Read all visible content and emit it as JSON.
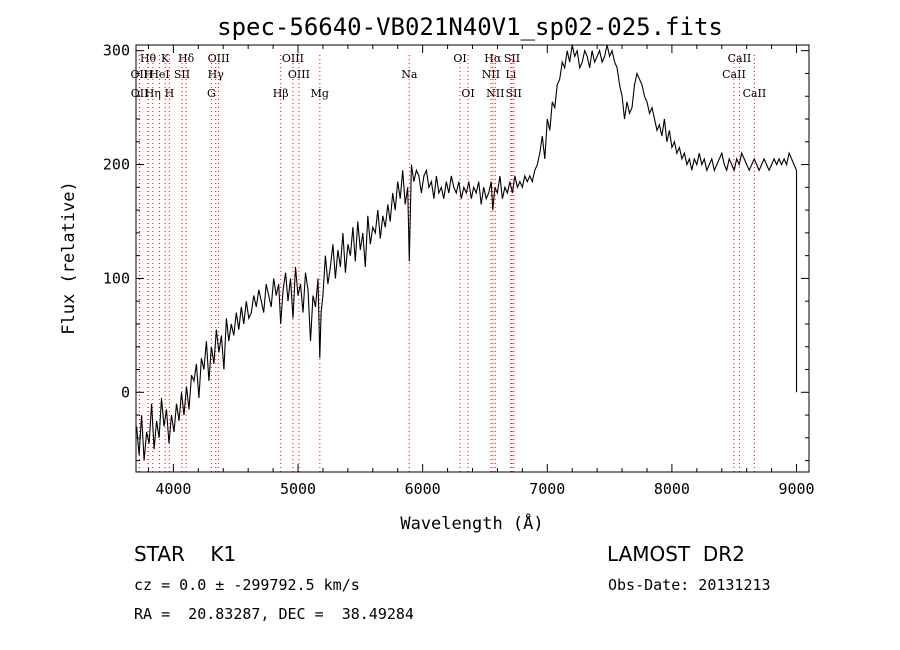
{
  "chart_data": {
    "type": "line",
    "title": "spec-56640-VB021N40V1_sp02-025.fits",
    "xlabel": "Wavelength (Å)",
    "ylabel": "Flux (relative)",
    "xlim": [
      3700,
      9100
    ],
    "ylim": [
      -70,
      305
    ],
    "x_ticks": [
      4000,
      5000,
      6000,
      7000,
      8000,
      9000
    ],
    "y_ticks": [
      0,
      100,
      200,
      300
    ],
    "grid": false,
    "line_color": "#000000",
    "marker_color": "#ff0000",
    "series": [
      {
        "x": [
          3705,
          3725,
          3745,
          3765,
          3785,
          3805,
          3825,
          3845,
          3865,
          3885,
          3905,
          3925,
          3945,
          3965,
          3985,
          4005,
          4025,
          4045,
          4065,
          4085,
          4105,
          4125,
          4145,
          4165,
          4185,
          4205,
          4225,
          4245,
          4265,
          4285,
          4305,
          4325,
          4345,
          4365,
          4385,
          4405,
          4425,
          4445,
          4465,
          4485,
          4505,
          4525,
          4545,
          4565,
          4585,
          4605,
          4625,
          4645,
          4665,
          4685,
          4705,
          4725,
          4745,
          4765,
          4785,
          4805,
          4825,
          4845,
          4861,
          4880,
          4900,
          4920,
          4940,
          4960,
          4980,
          5000,
          5020,
          5040,
          5060,
          5080,
          5100,
          5120,
          5140,
          5160,
          5175,
          5185,
          5200,
          5220,
          5240,
          5260,
          5280,
          5300,
          5320,
          5340,
          5360,
          5380,
          5400,
          5420,
          5440,
          5460,
          5480,
          5500,
          5520,
          5540,
          5560,
          5580,
          5600,
          5620,
          5640,
          5660,
          5680,
          5700,
          5720,
          5740,
          5760,
          5780,
          5800,
          5820,
          5840,
          5860,
          5880,
          5893,
          5910,
          5930,
          5950,
          5970,
          5990,
          6010,
          6030,
          6050,
          6070,
          6090,
          6110,
          6130,
          6150,
          6170,
          6190,
          6210,
          6230,
          6250,
          6270,
          6290,
          6310,
          6330,
          6350,
          6370,
          6390,
          6410,
          6430,
          6450,
          6470,
          6490,
          6510,
          6530,
          6550,
          6563,
          6580,
          6600,
          6620,
          6640,
          6660,
          6680,
          6700,
          6720,
          6740,
          6760,
          6780,
          6800,
          6820,
          6840,
          6860,
          6880,
          6900,
          6920,
          6940,
          6960,
          6980,
          7000,
          7020,
          7040,
          7060,
          7080,
          7100,
          7120,
          7140,
          7160,
          7180,
          7200,
          7220,
          7240,
          7260,
          7280,
          7300,
          7320,
          7340,
          7360,
          7380,
          7400,
          7420,
          7440,
          7460,
          7480,
          7500,
          7520,
          7540,
          7560,
          7580,
          7600,
          7620,
          7640,
          7660,
          7680,
          7700,
          7720,
          7740,
          7760,
          7780,
          7800,
          7820,
          7840,
          7860,
          7880,
          7900,
          7920,
          7940,
          7960,
          7980,
          8000,
          8020,
          8040,
          8060,
          8080,
          8100,
          8120,
          8140,
          8160,
          8180,
          8200,
          8220,
          8240,
          8260,
          8280,
          8300,
          8320,
          8340,
          8360,
          8380,
          8400,
          8420,
          8440,
          8460,
          8480,
          8500,
          8520,
          8540,
          8560,
          8580,
          8600,
          8620,
          8640,
          8660,
          8680,
          8700,
          8720,
          8740,
          8760,
          8780,
          8800,
          8820,
          8840,
          8860,
          8880,
          8900,
          8920,
          8940,
          8960,
          8980,
          9000
        ],
        "y": [
          -30,
          -55,
          -20,
          -60,
          -35,
          -45,
          -10,
          -50,
          -25,
          -40,
          -5,
          -30,
          -15,
          -45,
          -20,
          -35,
          -10,
          -25,
          0,
          -20,
          5,
          -15,
          15,
          10,
          25,
          -5,
          30,
          20,
          45,
          10,
          40,
          25,
          55,
          35,
          50,
          20,
          65,
          45,
          60,
          50,
          70,
          55,
          75,
          60,
          80,
          65,
          70,
          85,
          75,
          90,
          80,
          70,
          95,
          85,
          75,
          100,
          85,
          95,
          60,
          90,
          105,
          80,
          100,
          65,
          110,
          85,
          95,
          70,
          105,
          90,
          45,
          85,
          75,
          100,
          30,
          70,
          85,
          120,
          95,
          110,
          130,
          100,
          125,
          110,
          140,
          105,
          130,
          120,
          145,
          115,
          150,
          125,
          140,
          110,
          155,
          130,
          145,
          140,
          160,
          135,
          155,
          145,
          165,
          150,
          175,
          160,
          185,
          170,
          195,
          165,
          180,
          115,
          200,
          185,
          195,
          190,
          175,
          190,
          195,
          180,
          185,
          170,
          190,
          175,
          180,
          170,
          185,
          175,
          190,
          180,
          175,
          185,
          170,
          180,
          175,
          185,
          170,
          180,
          175,
          185,
          165,
          180,
          170,
          175,
          185,
          160,
          180,
          175,
          190,
          170,
          180,
          175,
          185,
          175,
          190,
          180,
          185,
          180,
          190,
          185,
          190,
          185,
          195,
          200,
          210,
          225,
          205,
          240,
          230,
          255,
          250,
          270,
          275,
          290,
          285,
          300,
          290,
          305,
          295,
          300,
          285,
          290,
          300,
          295,
          285,
          300,
          290,
          295,
          300,
          290,
          295,
          305,
          295,
          300,
          290,
          285,
          270,
          260,
          240,
          255,
          245,
          250,
          270,
          280,
          275,
          270,
          260,
          255,
          245,
          250,
          240,
          230,
          235,
          225,
          240,
          220,
          230,
          215,
          220,
          210,
          215,
          205,
          210,
          200,
          205,
          195,
          205,
          200,
          210,
          200,
          205,
          195,
          200,
          205,
          195,
          200,
          205,
          210,
          200,
          195,
          205,
          200,
          195,
          205,
          200,
          210,
          205,
          200,
          195,
          200,
          205,
          200,
          195,
          200,
          205,
          200,
          195,
          200,
          205,
          200,
          205,
          200,
          205,
          200,
          210,
          205,
          200,
          195
        ]
      }
    ],
    "line_markers": [
      {
        "name": "Hθ",
        "row": 1,
        "wl": 3797
      },
      {
        "name": "K",
        "row": 1,
        "wl": 3934
      },
      {
        "name": "Hδ",
        "row": 1,
        "wl": 4102
      },
      {
        "name": "OIII",
        "row": 1,
        "wl": 4363
      },
      {
        "name": "OIII",
        "row": 1,
        "wl": 4959
      },
      {
        "name": "OI",
        "row": 1,
        "wl": 6300
      },
      {
        "name": "Hα",
        "row": 1,
        "wl": 6563
      },
      {
        "name": "SII",
        "row": 1,
        "wl": 6717
      },
      {
        "name": "CaII",
        "row": 1,
        "wl": 8542
      },
      {
        "name": "OII",
        "row": 2,
        "wl": 3727
      },
      {
        "name": "H",
        "row": 2,
        "wl": 3798
      },
      {
        "name": "HeI",
        "row": 2,
        "wl": 3889
      },
      {
        "name": "SII",
        "row": 2,
        "wl": 4069
      },
      {
        "name": "Hγ",
        "row": 2,
        "wl": 4340
      },
      {
        "name": "OIII",
        "row": 2,
        "wl": 5007
      },
      {
        "name": "Na",
        "row": 2,
        "wl": 5893
      },
      {
        "name": "NII",
        "row": 2,
        "wl": 6548
      },
      {
        "name": "Li",
        "row": 2,
        "wl": 6708
      },
      {
        "name": "CaII",
        "row": 2,
        "wl": 8498
      },
      {
        "name": "OII",
        "row": 3,
        "wl": 3729
      },
      {
        "name": "Hη",
        "row": 3,
        "wl": 3835
      },
      {
        "name": "H",
        "row": 3,
        "wl": 3968
      },
      {
        "name": "G",
        "row": 3,
        "wl": 4305
      },
      {
        "name": "Hβ",
        "row": 3,
        "wl": 4861
      },
      {
        "name": "Mg",
        "row": 3,
        "wl": 5175
      },
      {
        "name": "OI",
        "row": 3,
        "wl": 6364
      },
      {
        "name": "NII",
        "row": 3,
        "wl": 6583
      },
      {
        "name": "SII",
        "row": 3,
        "wl": 6731
      },
      {
        "name": "CaII",
        "row": 3,
        "wl": 8662
      }
    ]
  },
  "info": {
    "object_class": "STAR    K1",
    "survey": "LAMOST  DR2",
    "redshift": "cz = 0.0 ± -299792.5 km/s",
    "obs_date": "Obs-Date: 20131213",
    "coords": "RA =  20.83287, DEC =  38.49284"
  }
}
